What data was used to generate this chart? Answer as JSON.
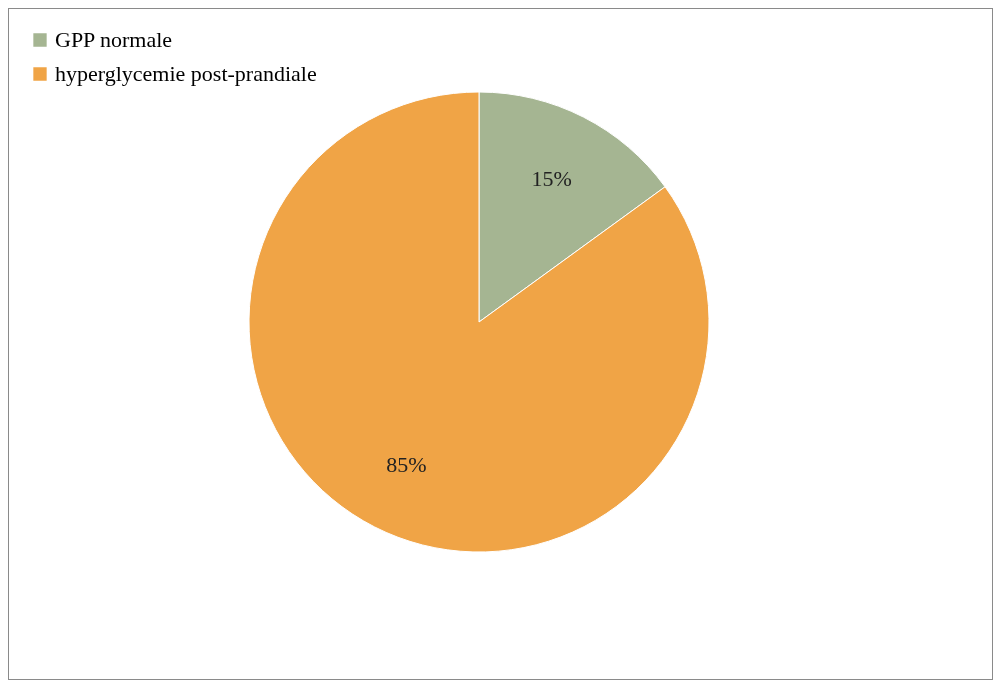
{
  "chart_data": {
    "type": "pie",
    "categories": [
      "GPP normale",
      "hyperglycemie post-prandiale"
    ],
    "values": [
      15,
      85
    ],
    "colors": [
      "#a5b592",
      "#f0a446"
    ],
    "value_labels": [
      "15%",
      "85%"
    ],
    "legend": "top"
  }
}
